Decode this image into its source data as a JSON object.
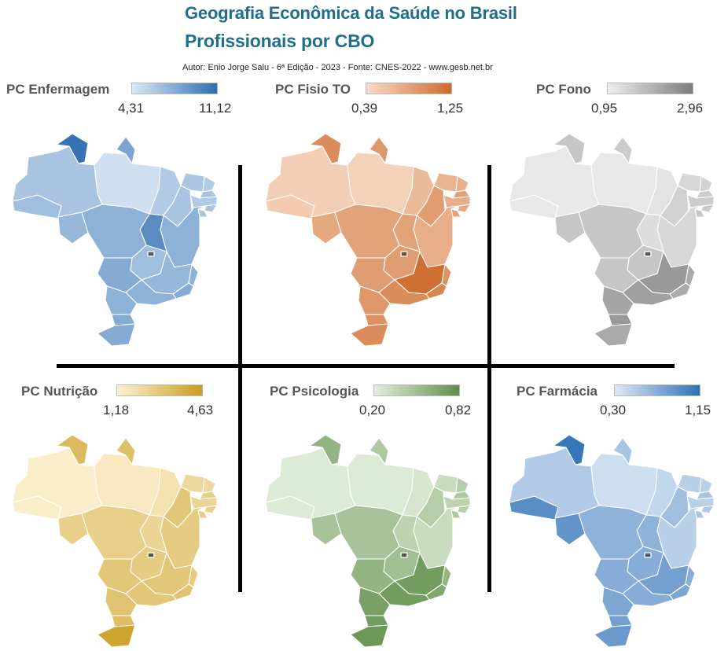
{
  "header": {
    "title_line1": "Geografia Econômica da Saúde no Brasil",
    "title_line2": "Profissionais por CBO",
    "credits": "Autor: Enio Jorge Salu - 6ª Edição - 2023 - Fonte: CNES-2022 - www.gesb.net.br"
  },
  "colors": {
    "title": "#1f6f8b",
    "enfermagem": [
      "#dde9f6",
      "#2e6db0"
    ],
    "fisio": [
      "#f8dcc9",
      "#cd6a2a"
    ],
    "fono": [
      "#eeeeee",
      "#7d7d7d"
    ],
    "nutricao": [
      "#fdf2d3",
      "#c99c1f"
    ],
    "psicologia": [
      "#e4efdd",
      "#5e8e47"
    ],
    "farmacia": [
      "#dce8f6",
      "#2f70b7"
    ]
  },
  "panels": [
    {
      "id": "enfermagem",
      "title": "PC Enfermagem",
      "min": "4,31",
      "max": "11,12"
    },
    {
      "id": "fisio",
      "title": "PC Fisio TO",
      "min": "0,39",
      "max": "1,25"
    },
    {
      "id": "fono",
      "title": "PC Fono",
      "min": "0,95",
      "max": "2,96"
    },
    {
      "id": "nutricao",
      "title": "PC Nutrição",
      "min": "1,18",
      "max": "4,63"
    },
    {
      "id": "psicologia",
      "title": "PC Psicologia",
      "min": "0,20",
      "max": "0,82"
    },
    {
      "id": "farmacia",
      "title": "PC Farmácia",
      "min": "0,30",
      "max": "1,15"
    }
  ],
  "states": [
    "AC",
    "AM",
    "RR",
    "PA",
    "AP",
    "MA",
    "PI",
    "CE",
    "RN",
    "PB",
    "PE",
    "AL",
    "SE",
    "BA",
    "TO",
    "RO",
    "MT",
    "GO",
    "DF",
    "MS",
    "MG",
    "ES",
    "RJ",
    "SP",
    "PR",
    "SC",
    "RS"
  ],
  "shading": {
    "enfermagem": {
      "AC": 0.35,
      "AM": 0.3,
      "RR": 0.95,
      "PA": 0.08,
      "AP": 0.55,
      "MA": 0.25,
      "PI": 0.3,
      "CE": 0.28,
      "RN": 0.25,
      "PB": 0.3,
      "PE": 0.25,
      "AL": 0.3,
      "SE": 0.3,
      "BA": 0.45,
      "TO": 0.75,
      "RO": 0.4,
      "MT": 0.45,
      "GO": 0.35,
      "DF": 0.6,
      "MS": 0.5,
      "MG": 0.4,
      "ES": 0.45,
      "RJ": 0.5,
      "SP": 0.45,
      "PR": 0.45,
      "SC": 0.5,
      "RS": 0.5
    },
    "fisio": {
      "AC": 0.15,
      "AM": 0.12,
      "RR": 0.7,
      "PA": 0.1,
      "AP": 0.6,
      "MA": 0.3,
      "PI": 0.55,
      "CE": 0.35,
      "RN": 0.4,
      "PB": 0.5,
      "PE": 0.4,
      "AL": 0.45,
      "SE": 0.5,
      "BA": 0.4,
      "TO": 0.5,
      "RO": 0.45,
      "MT": 0.5,
      "GO": 0.55,
      "DF": 0.7,
      "MS": 0.55,
      "MG": 0.95,
      "ES": 0.65,
      "RJ": 0.75,
      "SP": 0.7,
      "PR": 0.6,
      "SC": 0.65,
      "RS": 0.7
    },
    "fono": {
      "AC": 0.05,
      "AM": 0.05,
      "RR": 0.35,
      "PA": 0.05,
      "AP": 0.3,
      "MA": 0.1,
      "PI": 0.25,
      "CE": 0.2,
      "RN": 0.25,
      "PB": 0.3,
      "PE": 0.3,
      "AL": 0.3,
      "SE": 0.35,
      "BA": 0.2,
      "TO": 0.15,
      "RO": 0.35,
      "MT": 0.35,
      "GO": 0.35,
      "DF": 0.5,
      "MS": 0.35,
      "MG": 0.75,
      "ES": 0.6,
      "RJ": 0.6,
      "SP": 0.7,
      "PR": 0.65,
      "SC": 0.75,
      "RS": 0.6
    },
    "nutricao": {
      "AC": 0.05,
      "AM": 0.05,
      "RR": 0.65,
      "PA": 0.1,
      "AP": 0.6,
      "MA": 0.2,
      "PI": 0.5,
      "CE": 0.3,
      "RN": 0.3,
      "PB": 0.4,
      "PE": 0.35,
      "AL": 0.4,
      "SE": 0.45,
      "BA": 0.45,
      "TO": 0.35,
      "RO": 0.4,
      "MT": 0.4,
      "GO": 0.45,
      "DF": 0.55,
      "MS": 0.5,
      "MG": 0.5,
      "ES": 0.45,
      "RJ": 0.55,
      "SP": 0.5,
      "PR": 0.55,
      "SC": 0.6,
      "RS": 0.9
    },
    "psicologia": {
      "AC": 0.05,
      "AM": 0.05,
      "RR": 0.6,
      "PA": 0.05,
      "AP": 0.4,
      "MA": 0.1,
      "PI": 0.35,
      "CE": 0.2,
      "RN": 0.35,
      "PB": 0.4,
      "PE": 0.3,
      "AL": 0.35,
      "SE": 0.4,
      "BA": 0.2,
      "TO": 0.3,
      "RO": 0.45,
      "MT": 0.45,
      "GO": 0.5,
      "DF": 0.7,
      "MS": 0.6,
      "MG": 0.85,
      "ES": 0.6,
      "RJ": 0.75,
      "SP": 0.85,
      "PR": 0.8,
      "SC": 0.85,
      "RS": 0.9
    },
    "farmacia": {
      "AC": 0.75,
      "AM": 0.25,
      "RR": 0.95,
      "PA": 0.08,
      "AP": 0.3,
      "MA": 0.15,
      "PI": 0.35,
      "CE": 0.2,
      "RN": 0.2,
      "PB": 0.3,
      "PE": 0.2,
      "AL": 0.25,
      "SE": 0.3,
      "BA": 0.2,
      "TO": 0.45,
      "RO": 0.7,
      "MT": 0.45,
      "GO": 0.5,
      "DF": 0.55,
      "MS": 0.5,
      "MG": 0.6,
      "ES": 0.5,
      "RJ": 0.55,
      "SP": 0.5,
      "PR": 0.55,
      "SC": 0.6,
      "RS": 0.65
    }
  }
}
